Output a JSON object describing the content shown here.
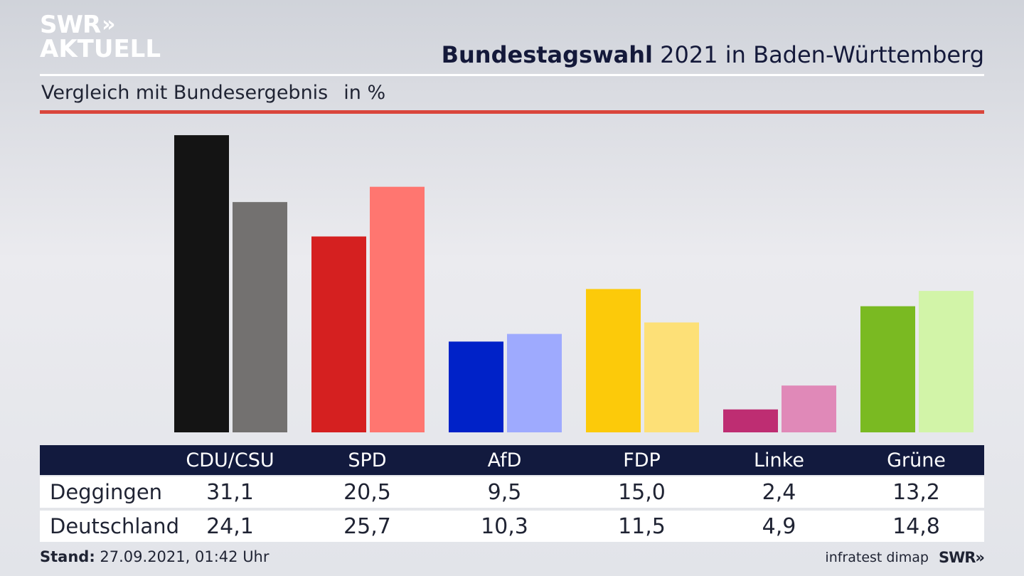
{
  "header": {
    "logo_line1": "SWR",
    "logo_chevrons": "»",
    "logo_line2": "AKTUELL",
    "title_bold": "Bundestagswahl",
    "title_rest": "2021 in Baden-Württemberg",
    "subtitle": "Vergleich mit Bundesergebnis",
    "unit": "in %"
  },
  "footer": {
    "stand_label": "Stand:",
    "stand_value": "27.09.2021, 01:42 Uhr",
    "source": "infratest dimap",
    "brand": "SWR»"
  },
  "colors": {
    "accent_rule": "#d9463c",
    "table_header": "#121a3e"
  },
  "chart_data": {
    "type": "bar",
    "categories": [
      "CDU/CSU",
      "SPD",
      "AfD",
      "FDP",
      "Linke",
      "Grüne"
    ],
    "series": [
      {
        "name": "Deggingen",
        "values": [
          31.1,
          20.5,
          9.5,
          15.0,
          2.4,
          13.2
        ],
        "labels": [
          "31,1",
          "20,5",
          "9,5",
          "15,0",
          "2,4",
          "13,2"
        ],
        "colors": [
          "#141414",
          "#d52020",
          "#0022c8",
          "#fcca0a",
          "#be2d72",
          "#7aba22"
        ]
      },
      {
        "name": "Deutschland",
        "values": [
          24.1,
          25.7,
          10.3,
          11.5,
          4.9,
          14.8
        ],
        "labels": [
          "24,1",
          "25,7",
          "10,3",
          "11,5",
          "4,9",
          "14,8"
        ],
        "colors": [
          "#737170",
          "#ff7670",
          "#9eaafe",
          "#fde077",
          "#e089b8",
          "#d2f4a8"
        ]
      }
    ],
    "ylim": [
      0,
      32
    ]
  }
}
